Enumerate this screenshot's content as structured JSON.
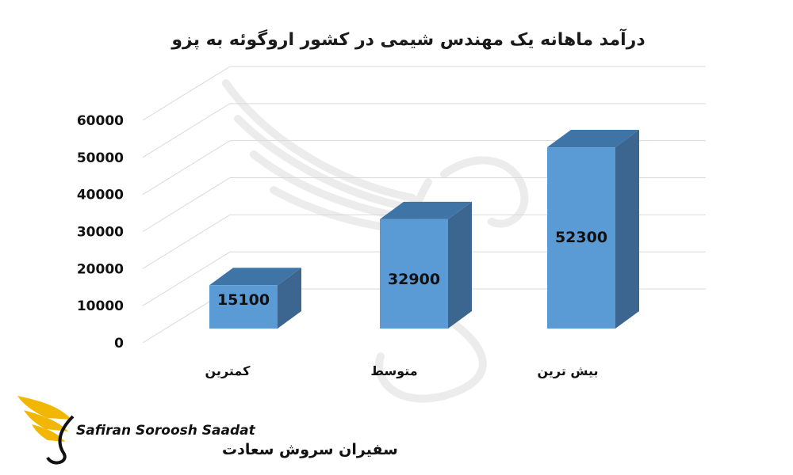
{
  "chart_data": {
    "type": "bar",
    "title": "درآمد ماهانه یک مهندس شیمی در کشور اروگوئه به پزو",
    "categories": [
      "کمترین",
      "متوسط",
      "بیش ترین"
    ],
    "values": [
      15100,
      32900,
      52300
    ],
    "value_labels": [
      "15100",
      "32900",
      "52300"
    ],
    "y_ticks": [
      "0",
      "10000",
      "20000",
      "30000",
      "40000",
      "50000",
      "60000"
    ],
    "ylim": [
      0,
      60000
    ],
    "grid": true,
    "legend": "none",
    "style": "3d-column",
    "colors": {
      "bar_front": "#5b9bd5",
      "bar_top": "#3f75a6",
      "bar_side": "#3c668f",
      "grid": "#d9d9d9"
    }
  },
  "watermark": {
    "name": "bird-wings-watermark"
  },
  "logo": {
    "latin": "Safiran Soroosh Saadat",
    "farsi": "سفیران سروش سعادت",
    "colors": {
      "wing": "#f2b705",
      "text": "#111111"
    }
  }
}
